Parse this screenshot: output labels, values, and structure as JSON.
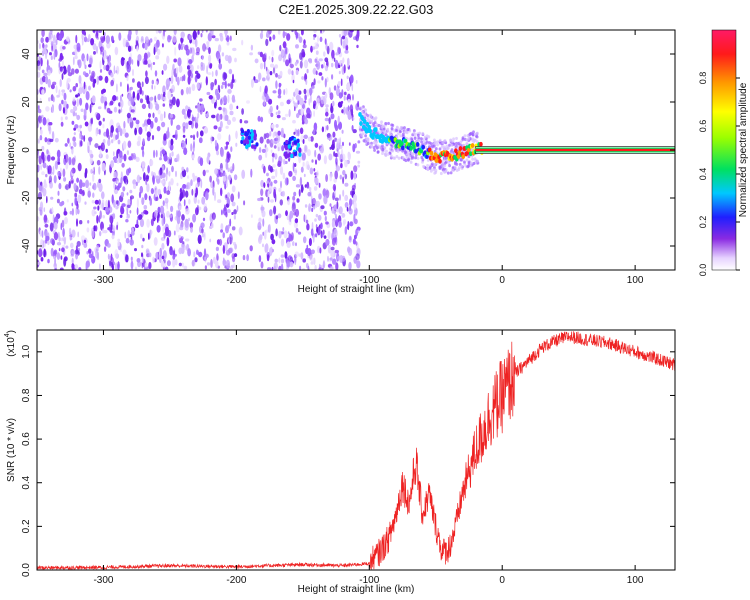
{
  "title": "C2E1.2025.309.22.22.G03",
  "chart_data": [
    {
      "type": "heatmap",
      "name": "spectrogram",
      "xlabel": "Height of straight line (km)",
      "ylabel": "Frequency (Hz)",
      "xlim": [
        -350,
        130
      ],
      "ylim": [
        -50,
        50
      ],
      "xticks": [
        -300,
        -200,
        -100,
        0,
        100
      ],
      "yticks": [
        -40,
        -20,
        0,
        20,
        40
      ],
      "noise_region_x": [
        -350,
        -108
      ],
      "low_density_band_x": [
        -200,
        -183
      ],
      "signal_track": {
        "x": [
          -107,
          -100,
          -90,
          -80,
          -70,
          -60,
          -50,
          -40,
          -30,
          -20,
          -10,
          0,
          50,
          130
        ],
        "frequency": [
          13,
          8,
          5,
          3,
          2,
          0,
          -3,
          -3,
          -1,
          1,
          0,
          0,
          0,
          0
        ]
      },
      "clusters": [
        {
          "x": -190,
          "frequency": 5
        },
        {
          "x": -158,
          "frequency": 1
        }
      ],
      "colorbar": {
        "label": "Normalized spectral amplitude",
        "range": [
          0.0,
          1.0
        ],
        "ticks": [
          0.0,
          0.2,
          0.4,
          0.6,
          0.8
        ]
      }
    },
    {
      "type": "line",
      "name": "snr",
      "xlabel": "Height of straight line (km)",
      "ylabel": "SNR (10 * v/v)",
      "scale_label": "(x10",
      "scale_exp": "4",
      "xlim": [
        -350,
        130
      ],
      "ylim": [
        0.0,
        1.1
      ],
      "xticks": [
        -300,
        -200,
        -100,
        0,
        100
      ],
      "yticks": [
        0.0,
        0.2,
        0.4,
        0.6,
        0.8,
        1.0
      ],
      "series": [
        {
          "name": "SNR",
          "color": "#ee2222",
          "x": [
            -350,
            -300,
            -250,
            -200,
            -150,
            -120,
            -100,
            -95,
            -90,
            -85,
            -80,
            -75,
            -70,
            -65,
            -60,
            -55,
            -50,
            -45,
            -40,
            -35,
            -30,
            -25,
            -20,
            -15,
            -10,
            -5,
            0,
            10,
            20,
            30,
            40,
            50,
            60,
            70,
            80,
            90,
            100,
            110,
            120,
            130
          ],
          "y": [
            0.01,
            0.012,
            0.02,
            0.015,
            0.025,
            0.02,
            0.03,
            0.06,
            0.1,
            0.15,
            0.25,
            0.4,
            0.3,
            0.5,
            0.25,
            0.35,
            0.2,
            0.08,
            0.1,
            0.2,
            0.35,
            0.45,
            0.55,
            0.62,
            0.7,
            0.75,
            0.8,
            0.9,
            0.96,
            1.02,
            1.05,
            1.07,
            1.06,
            1.05,
            1.04,
            1.02,
            1.0,
            0.98,
            0.96,
            0.94
          ]
        }
      ]
    }
  ]
}
